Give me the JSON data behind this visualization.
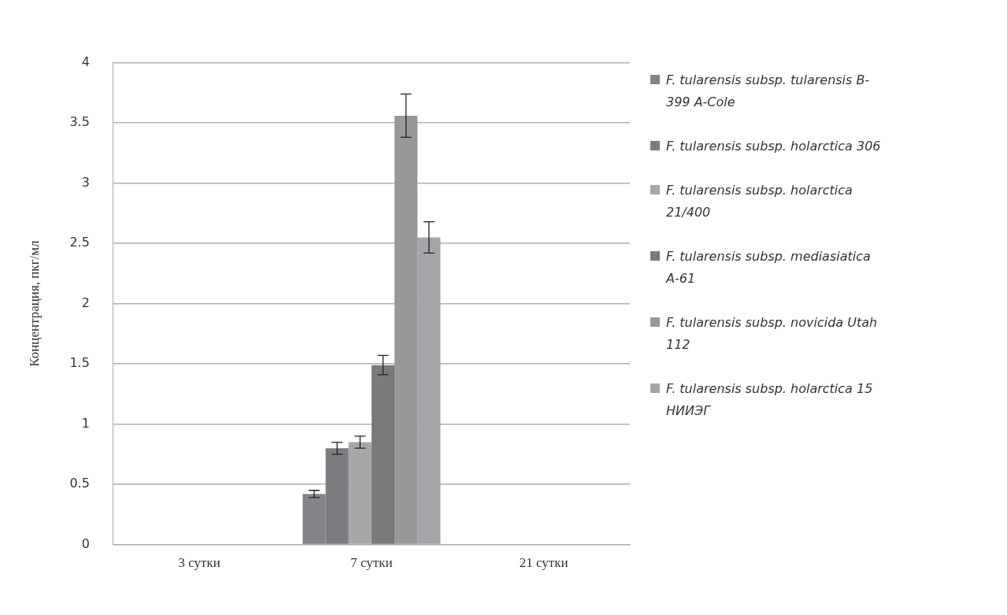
{
  "chart_data": {
    "type": "bar",
    "ylabel": "Концентрация, пкг/мл",
    "categories": [
      "3 сутки",
      "7 сутки",
      "21 сутки"
    ],
    "series": [
      {
        "name": "F. tularensis subsp. tularensis B-399 A-Cole",
        "color": "#858589",
        "values": [
          null,
          0.42,
          null
        ],
        "errors": [
          null,
          0.03,
          null
        ]
      },
      {
        "name": "F. tularensis subsp. holarctica 306",
        "color": "#7c7c80",
        "values": [
          null,
          0.8,
          null
        ],
        "errors": [
          null,
          0.05,
          null
        ]
      },
      {
        "name": "F. tularensis subsp. holarctica 21/400",
        "color": "#a6a7a9",
        "values": [
          null,
          0.85,
          null
        ],
        "errors": [
          null,
          0.05,
          null
        ]
      },
      {
        "name": "F. tularensis subsp. mediasiatica A-61",
        "color": "#7a7a7c",
        "values": [
          null,
          1.49,
          null
        ],
        "errors": [
          null,
          0.08,
          null
        ]
      },
      {
        "name": "F. tularensis subsp. novicida Utah 112",
        "color": "#98989b",
        "values": [
          null,
          3.56,
          null
        ],
        "errors": [
          null,
          0.18,
          null
        ]
      },
      {
        "name": "F. tularensis subsp. holarctica 15 НИИЭГ",
        "color": "#a4a5a8",
        "values": [
          null,
          2.55,
          null
        ],
        "errors": [
          null,
          0.13,
          null
        ]
      }
    ],
    "ylim": [
      0,
      4
    ],
    "yticks": [
      0,
      0.5,
      1,
      1.5,
      2,
      2.5,
      3,
      3.5,
      4
    ],
    "grid": "y",
    "legend": "right"
  }
}
